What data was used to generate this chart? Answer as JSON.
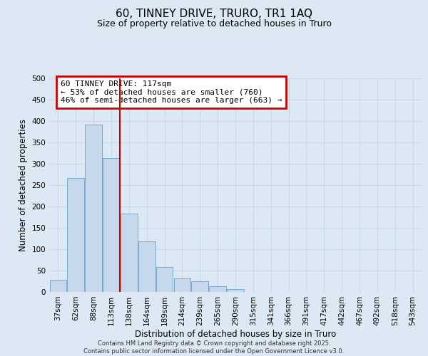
{
  "title": "60, TINNEY DRIVE, TRURO, TR1 1AQ",
  "subtitle": "Size of property relative to detached houses in Truro",
  "xlabel": "Distribution of detached houses by size in Truro",
  "ylabel": "Number of detached properties",
  "categories": [
    "37sqm",
    "62sqm",
    "88sqm",
    "113sqm",
    "138sqm",
    "164sqm",
    "189sqm",
    "214sqm",
    "239sqm",
    "265sqm",
    "290sqm",
    "315sqm",
    "341sqm",
    "366sqm",
    "391sqm",
    "417sqm",
    "442sqm",
    "467sqm",
    "492sqm",
    "518sqm",
    "543sqm"
  ],
  "values": [
    29,
    267,
    392,
    314,
    183,
    118,
    58,
    32,
    25,
    13,
    7,
    0,
    0,
    0,
    0,
    0,
    0,
    0,
    0,
    0,
    0
  ],
  "bar_color": "#c8d8ec",
  "bar_edge_color": "#7aaad0",
  "vline_index": 3,
  "vline_color": "#cc0000",
  "annotation_title": "60 TINNEY DRIVE: 117sqm",
  "annotation_line1": "← 53% of detached houses are smaller (760)",
  "annotation_line2": "46% of semi-detached houses are larger (663) →",
  "annotation_box_color": "#cc0000",
  "annotation_bg": "#ffffff",
  "ylim": [
    0,
    500
  ],
  "yticks": [
    0,
    50,
    100,
    150,
    200,
    250,
    300,
    350,
    400,
    450,
    500
  ],
  "grid_color": "#c8d8ec",
  "bg_color": "#dce8f4",
  "footer_line1": "Contains HM Land Registry data © Crown copyright and database right 2025.",
  "footer_line2": "Contains public sector information licensed under the Open Government Licence v3.0.",
  "title_fontsize": 11,
  "subtitle_fontsize": 9,
  "axis_label_fontsize": 8.5,
  "tick_fontsize": 7.5,
  "annotation_fontsize": 8,
  "footer_fontsize": 6
}
